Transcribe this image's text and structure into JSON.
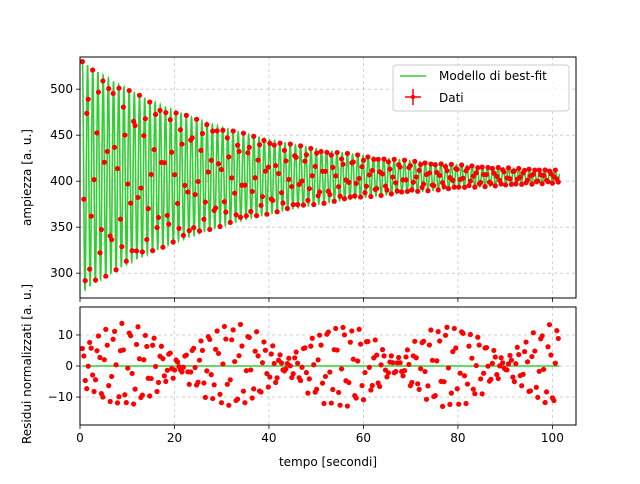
{
  "chart_data": [
    {
      "type": "line",
      "panel": "top",
      "title": "",
      "xlabel": "",
      "ylabel": "ampiezza [a. u.]",
      "xlim": [
        0,
        105
      ],
      "ylim": [
        273,
        535
      ],
      "xticks": [
        0,
        20,
        40,
        60,
        80,
        100
      ],
      "yticks": [
        300,
        350,
        400,
        450,
        500
      ],
      "grid": true,
      "legend_position": "top-right",
      "series": [
        {
          "name": "Modello di best-fit",
          "kind": "line",
          "color": "#32cd32",
          "model": {
            "equilibrium": 405,
            "amplitude": 125,
            "decay_time": 35,
            "period": 1.1,
            "t_start": 0.5,
            "t_end": 101.5
          }
        },
        {
          "name": "Dati",
          "kind": "scatter",
          "color": "#ff0000",
          "sampling": {
            "n_points": 330,
            "t_start": 0.5,
            "t_end": 101.5,
            "sample_period": 0.31
          }
        }
      ]
    },
    {
      "type": "scatter",
      "panel": "bottom",
      "title": "",
      "xlabel": "tempo [secondi]",
      "ylabel": "Residui normalizzati [a. u.]",
      "xlim": [
        0,
        105
      ],
      "ylim": [
        -19,
        19
      ],
      "xticks": [
        0,
        20,
        40,
        60,
        80,
        100
      ],
      "yticks": [
        -10,
        0,
        10
      ],
      "grid": true,
      "series": [
        {
          "name": "",
          "kind": "line",
          "color": "#32cd32",
          "value": 0
        },
        {
          "name": "",
          "kind": "scatter",
          "color": "#ff0000"
        }
      ]
    }
  ]
}
